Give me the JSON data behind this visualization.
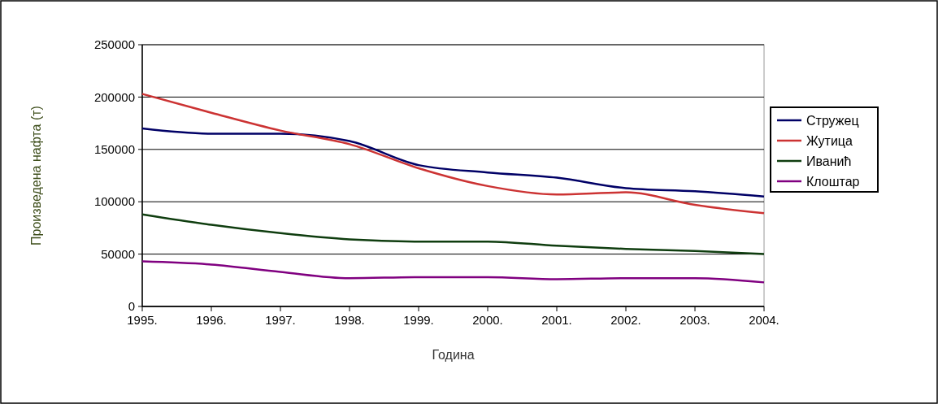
{
  "chart_data": {
    "type": "line",
    "xlabel": "Година",
    "ylabel": "Произведена нафта (т)",
    "x": [
      1995,
      1996,
      1997,
      1998,
      1999,
      2000,
      2001,
      2002,
      2003,
      2004
    ],
    "series": [
      {
        "name": "Стружец",
        "color": "#000066",
        "values": [
          170000,
          165000,
          165000,
          158000,
          135000,
          128000,
          123000,
          113000,
          110000,
          105000
        ]
      },
      {
        "name": "Жутица",
        "color": "#cc3333",
        "values": [
          203000,
          185000,
          168000,
          155000,
          132000,
          115000,
          107000,
          109000,
          97000,
          89000
        ]
      },
      {
        "name": "Иванић",
        "color": "#0f3d0f",
        "values": [
          88000,
          78000,
          70000,
          64000,
          62000,
          62000,
          58000,
          55000,
          53000,
          50000
        ]
      },
      {
        "name": "Клоштар",
        "color": "#800080",
        "values": [
          43000,
          40000,
          33000,
          27000,
          28000,
          28000,
          26000,
          27000,
          27000,
          23000
        ]
      }
    ],
    "xlim": [
      1995,
      2004
    ],
    "xticks": [
      {
        "value": 1995,
        "label": "1995."
      },
      {
        "value": 1996,
        "label": "1996."
      },
      {
        "value": 1997,
        "label": "1997."
      },
      {
        "value": 1998,
        "label": "1998."
      },
      {
        "value": 1999,
        "label": "1999."
      },
      {
        "value": 2000,
        "label": "2000."
      },
      {
        "value": 2001,
        "label": "2001."
      },
      {
        "value": 2002,
        "label": "2002."
      },
      {
        "value": 2003,
        "label": "2003."
      },
      {
        "value": 2004,
        "label": "2004."
      }
    ],
    "ylim": [
      0,
      250000
    ],
    "yticks": [
      0,
      50000,
      100000,
      150000,
      200000,
      250000
    ],
    "grid": "y",
    "legend": "right",
    "marker": "none",
    "line_style": "solid"
  }
}
